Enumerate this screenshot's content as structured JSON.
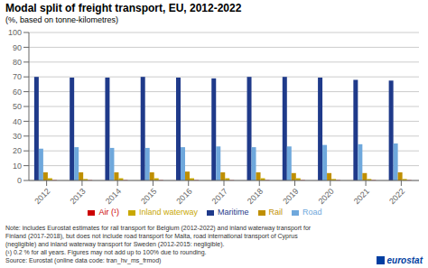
{
  "chart_data": {
    "type": "bar",
    "title": "Modal split of freight transport, EU, 2012-2022",
    "subtitle": "(%, based on tonne-kilometres)",
    "categories": [
      "2012",
      "2013",
      "2014",
      "2015",
      "2016",
      "2017",
      "2018",
      "2019",
      "2020",
      "2021",
      "2022"
    ],
    "series": [
      {
        "name": "Maritime",
        "color": "#1F3A8A",
        "values": [
          70,
          69.5,
          69.5,
          70,
          69.5,
          69,
          70,
          70,
          69.5,
          68,
          67.5
        ]
      },
      {
        "name": "Road",
        "color": "#6FA8DC",
        "values": [
          21.5,
          22.5,
          22,
          22,
          22.5,
          23,
          22.5,
          23,
          24,
          24.5,
          25
        ]
      },
      {
        "name": "Rail",
        "color": "#BF8F00",
        "values": [
          5.5,
          5.5,
          5.5,
          5.5,
          6,
          5.5,
          5.5,
          5,
          5,
          5,
          5.5
        ]
      },
      {
        "name": "Inland waterway",
        "color": "#C9A800",
        "values": [
          1.5,
          1.0,
          1.5,
          1.5,
          1.5,
          1.5,
          1.5,
          1.5,
          1.0,
          1.0,
          1.0
        ]
      },
      {
        "name": "Air (¹)",
        "color": "#CC0000",
        "values": [
          0.2,
          0.2,
          0.2,
          0.2,
          0.2,
          0.2,
          0.2,
          0.2,
          0.2,
          0.2,
          0.2
        ]
      }
    ],
    "ylim": [
      0,
      100
    ],
    "yticks": [
      0,
      10,
      20,
      30,
      40,
      50,
      60,
      70,
      80,
      90,
      100
    ],
    "grid": true,
    "legend": "bottom",
    "annotations": [
      "Note: includes Eurostat estimates for rail transport for Belgium (2012-2022) and inland waterway transport for",
      "Finland (2017-2018), but does not include road transport for Malta, road international transport of Cyprus",
      "(negligible) and inland waterway transport for Sweden (2012-2015: negligible).",
      "(¹) 0.2 % for all years. Figures may not add up to 100% due to rounding.",
      "Source: Eurostat (online data code: tran_hv_ms_frmod)",
      "eurostat"
    ]
  }
}
